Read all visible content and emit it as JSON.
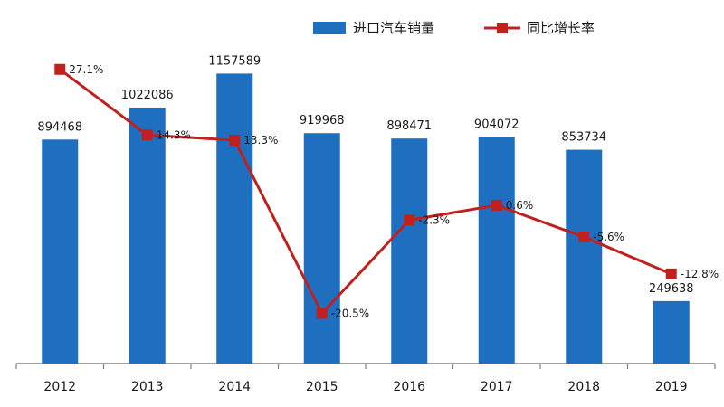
{
  "chart_data": {
    "type": "bar+line",
    "categories": [
      "2012",
      "2013",
      "2014",
      "2015",
      "2016",
      "2017",
      "2018",
      "2019"
    ],
    "series": [
      {
        "name": "进口汽车销量",
        "kind": "bar",
        "axis": "left",
        "values": [
          894468,
          1022086,
          1157589,
          919968,
          898471,
          904072,
          853734,
          249638
        ],
        "labels": [
          "894468",
          "1022086",
          "1157589",
          "919968",
          "898471",
          "904072",
          "853734",
          "249638"
        ]
      },
      {
        "name": "同比增长率",
        "kind": "line",
        "axis": "right",
        "values": [
          27.1,
          14.3,
          13.3,
          -20.5,
          -2.3,
          0.6,
          -5.6,
          -12.8
        ],
        "labels": [
          "27.1%",
          "14.3%",
          "13.3%",
          "-20.5%",
          "-2.3%",
          "0.6%",
          "-5.6%",
          "-12.8%"
        ]
      }
    ],
    "ylim_left": [
      0,
      1300000
    ],
    "ylim_right": [
      -25,
      35
    ],
    "legend_position": "top-right",
    "colors": {
      "bar": "#1f6fc0",
      "line": "#c0201e",
      "axis": "#808080"
    }
  }
}
